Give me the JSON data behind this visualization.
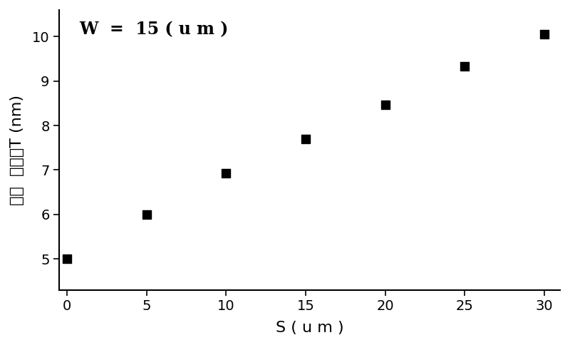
{
  "x": [
    0,
    5,
    10,
    15,
    20,
    25,
    30
  ],
  "y": [
    5.0,
    6.0,
    6.93,
    7.7,
    8.47,
    9.33,
    10.05
  ],
  "marker": "s",
  "marker_color": "#000000",
  "marker_size": 80,
  "annotation_text": "W  =  15 ( u m )",
  "xlabel": "S ( u m )",
  "ylabel": "量子  阱厚度T (nm)",
  "xlim": [
    -0.5,
    31
  ],
  "ylim": [
    4.3,
    10.6
  ],
  "xticks": [
    0,
    5,
    10,
    15,
    20,
    25,
    30
  ],
  "yticks": [
    5,
    6,
    7,
    8,
    9,
    10
  ],
  "background_color": "#ffffff",
  "axes_linewidth": 1.5,
  "annotation_fontsize": 17,
  "label_fontsize": 16,
  "tick_fontsize": 14
}
